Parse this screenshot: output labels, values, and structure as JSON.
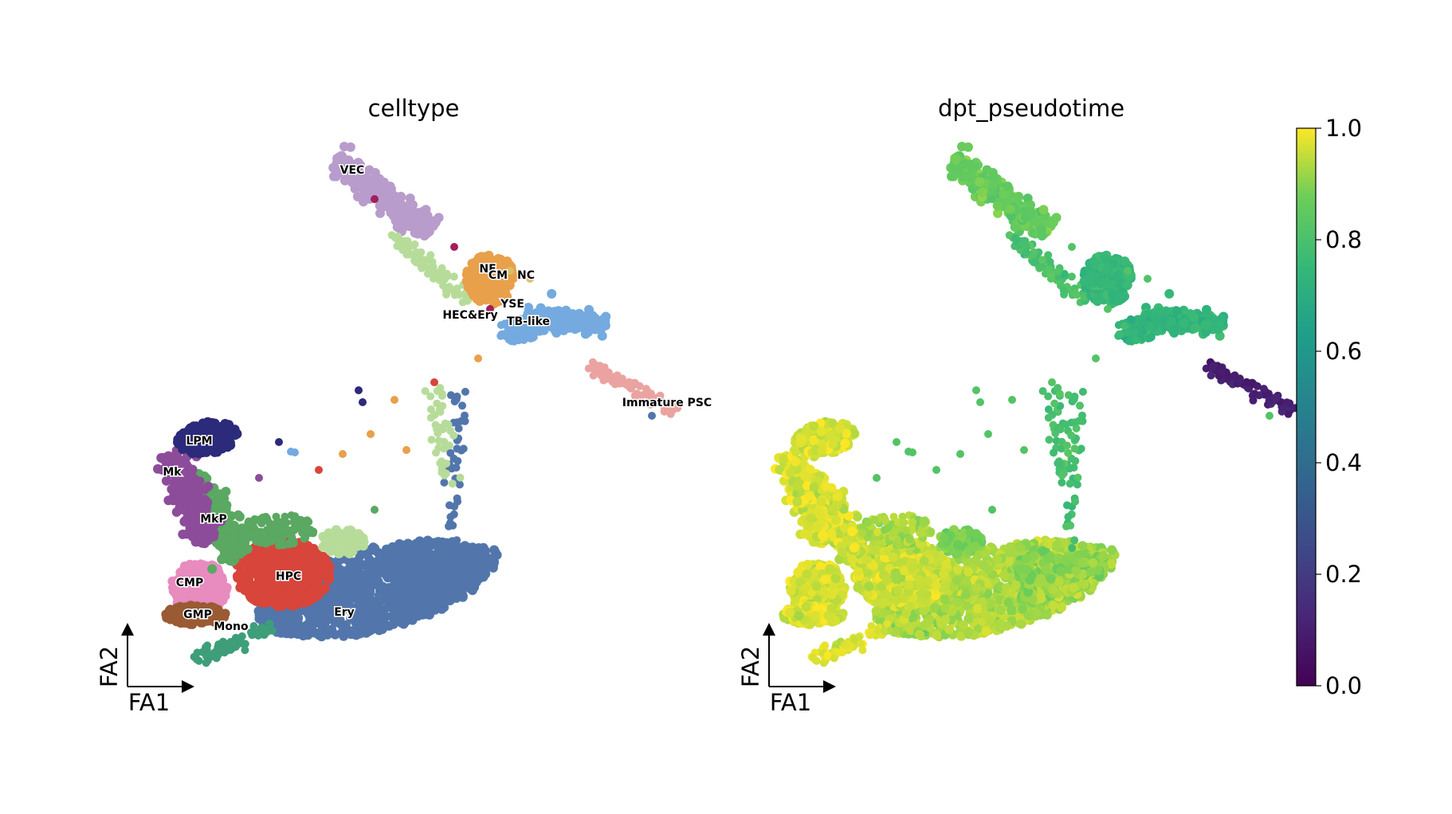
{
  "chart_data": [
    {
      "type": "scatter",
      "title": "celltype",
      "xlabel": "FA1",
      "ylabel": "FA2",
      "legend": "on data",
      "categories": [
        {
          "name": "VEC",
          "color": "#b89ccc"
        },
        {
          "name": "NE",
          "color": "#e8a04a"
        },
        {
          "name": "CM",
          "color": "#d8c060"
        },
        {
          "name": "NC",
          "color": "#e0c070"
        },
        {
          "name": "YSE",
          "color": "#a31f5a"
        },
        {
          "name": "HEC&Ery",
          "color": "#b7dc9a"
        },
        {
          "name": "TB-like",
          "color": "#74aadf"
        },
        {
          "name": "Immature PSC",
          "color": "#eaa3a0"
        },
        {
          "name": "LPM",
          "color": "#2c2a7a"
        },
        {
          "name": "Mk",
          "color": "#8d4c9a"
        },
        {
          "name": "MkP",
          "color": "#5aa861"
        },
        {
          "name": "CMP",
          "color": "#e88bbf"
        },
        {
          "name": "GMP",
          "color": "#9a5a33"
        },
        {
          "name": "Mono",
          "color": "#3e9e7a"
        },
        {
          "name": "HPC",
          "color": "#d8453a"
        },
        {
          "name": "Ery",
          "color": "#5276ab"
        }
      ]
    },
    {
      "type": "scatter",
      "title": "dpt_pseudotime",
      "xlabel": "FA1",
      "ylabel": "FA2",
      "colorbar": {
        "min": 0.0,
        "max": 1.0,
        "ticks": [
          "0.0",
          "0.2",
          "0.4",
          "0.6",
          "0.8",
          "1.0"
        ],
        "colormap": "viridis"
      },
      "region_values": [
        {
          "region": "VEC",
          "value": 0.86
        },
        {
          "region": "NE/CM/NC/YSE",
          "value": 0.75
        },
        {
          "region": "TB-like",
          "value": 0.74
        },
        {
          "region": "Immature PSC",
          "value": 0.1
        },
        {
          "region": "LPM/Mk/MkP",
          "value": 0.97
        },
        {
          "region": "CMP/GMP/Mono/HPC",
          "value": 0.96
        },
        {
          "region": "Ery",
          "value": 0.93
        }
      ]
    }
  ]
}
